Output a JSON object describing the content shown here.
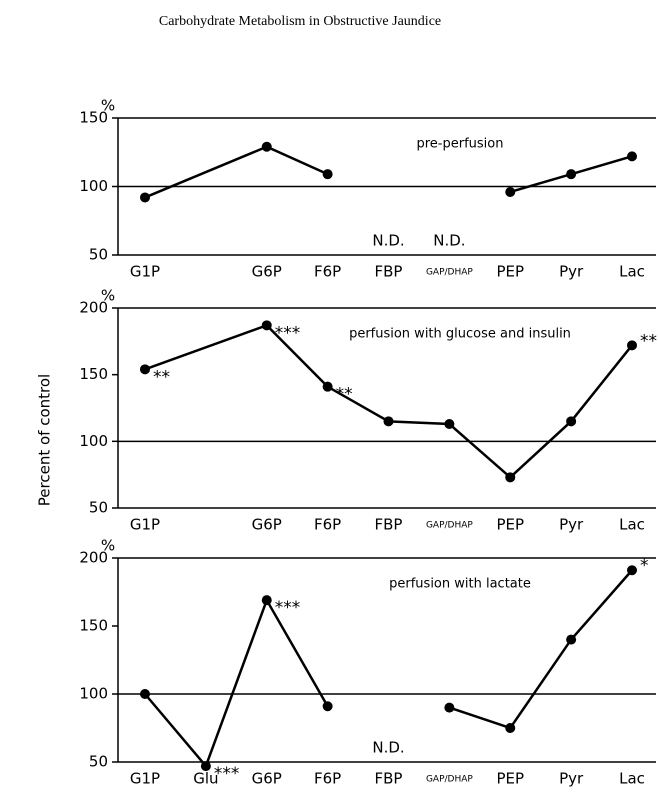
{
  "header": "Carbohydrate Metabolism in Obstructive Jaundice",
  "y_label": "Percent of control",
  "chart_data": [
    {
      "type": "line",
      "label": "pre-perfusion",
      "unit": "%",
      "categories": [
        "G1P",
        "G6P",
        "F6P",
        "FBP",
        "GAP/DHAP",
        "PEP",
        "Pyr",
        "Lac"
      ],
      "series": [
        {
          "color": "#000000",
          "values": [
            92,
            129,
            109,
            null,
            null,
            96,
            109,
            122
          ],
          "significance": [
            null,
            null,
            null,
            null,
            null,
            null,
            null,
            null
          ]
        }
      ],
      "notes": [
        {
          "text": "N.D.",
          "category": "FBP"
        },
        {
          "text": "N.D.",
          "category": "GAP/DHAP"
        }
      ],
      "reference": 100,
      "ylim": [
        50,
        150
      ],
      "yticks": [
        50,
        100,
        150
      ]
    },
    {
      "type": "line",
      "label": "perfusion with glucose and insulin",
      "unit": "%",
      "categories": [
        "G1P",
        "G6P",
        "F6P",
        "FBP",
        "GAP/DHAP",
        "PEP",
        "Pyr",
        "Lac"
      ],
      "series": [
        {
          "color": "#000000",
          "values": [
            154,
            187,
            141,
            115,
            113,
            73,
            115,
            172
          ],
          "significance": [
            "**",
            "***",
            "**",
            null,
            null,
            null,
            null,
            "**"
          ]
        }
      ],
      "notes": [],
      "reference": 100,
      "ylim": [
        50,
        200
      ],
      "yticks": [
        50,
        100,
        150,
        200
      ]
    },
    {
      "type": "line",
      "label": "perfusion with lactate",
      "unit": "%",
      "categories": [
        "G1P",
        "Glu",
        "G6P",
        "F6P",
        "FBP",
        "GAP/DHAP",
        "PEP",
        "Pyr",
        "Lac"
      ],
      "series": [
        {
          "color": "#000000",
          "values": [
            100,
            47,
            169,
            91,
            null,
            90,
            75,
            140,
            191
          ],
          "significance": [
            null,
            "***",
            "***",
            null,
            null,
            null,
            null,
            null,
            "*"
          ]
        }
      ],
      "notes": [
        {
          "text": "N.D.",
          "category": "FBP"
        }
      ],
      "reference": 100,
      "ylim": [
        50,
        200
      ],
      "yticks": [
        50,
        100,
        150,
        200
      ]
    }
  ]
}
